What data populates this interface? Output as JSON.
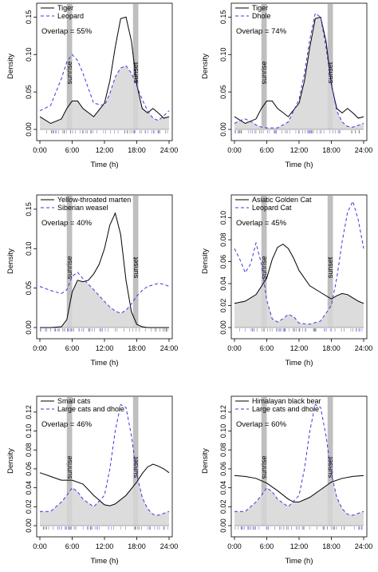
{
  "figure": {
    "xlabel": "Time (h)",
    "ylabel": "Density",
    "sunrise_label": "sunrise",
    "sunset_label": "sunset",
    "colors": {
      "solid": "#000000",
      "dashed": "#3a3ae0",
      "fill": "#d6d6d6",
      "band": "#bfbfbf",
      "rug_solid": "#777777",
      "rug_dashed": "#7a7af0"
    }
  },
  "chart_data": [
    {
      "type": "line",
      "xlabel": "Time (h)",
      "ylabel": "Density",
      "xlim": [
        0,
        24
      ],
      "ylim": [
        0,
        0.16
      ],
      "xticks": [
        "0:00",
        "6:00",
        "12:00",
        "18:00",
        "24:00"
      ],
      "yticks": [
        "0.00",
        "0.05",
        "0.10",
        "0.15"
      ],
      "overlap": "Overlap = 55%",
      "series": [
        {
          "name": "Tiger",
          "style": "solid",
          "x": [
            0,
            2,
            4,
            5,
            6,
            7,
            8,
            10,
            12,
            13,
            14,
            15,
            16,
            17,
            18,
            19,
            20,
            21,
            22,
            23,
            24
          ],
          "y": [
            0.017,
            0.008,
            0.014,
            0.028,
            0.038,
            0.038,
            0.028,
            0.017,
            0.035,
            0.065,
            0.11,
            0.148,
            0.15,
            0.118,
            0.06,
            0.028,
            0.022,
            0.028,
            0.022,
            0.015,
            0.017
          ]
        },
        {
          "name": "Leopard",
          "style": "dashed",
          "x": [
            0,
            2,
            4,
            5,
            6,
            7,
            8,
            10,
            12,
            13,
            14,
            15,
            16,
            17,
            18,
            19,
            20,
            21,
            22,
            23,
            24
          ],
          "y": [
            0.025,
            0.032,
            0.068,
            0.09,
            0.1,
            0.092,
            0.075,
            0.035,
            0.032,
            0.048,
            0.07,
            0.082,
            0.085,
            0.075,
            0.058,
            0.04,
            0.025,
            0.015,
            0.012,
            0.018,
            0.025
          ]
        }
      ]
    },
    {
      "type": "line",
      "xlabel": "Time (h)",
      "ylabel": "Density",
      "xlim": [
        0,
        24
      ],
      "ylim": [
        0,
        0.16
      ],
      "xticks": [
        "0:00",
        "6:00",
        "12:00",
        "18:00",
        "24:00"
      ],
      "yticks": [
        "0.00",
        "0.05",
        "0.10",
        "0.15"
      ],
      "overlap": "Overlap = 74%",
      "series": [
        {
          "name": "Tiger",
          "style": "solid",
          "x": [
            0,
            2,
            4,
            5,
            6,
            7,
            8,
            10,
            12,
            13,
            14,
            15,
            16,
            17,
            18,
            19,
            20,
            21,
            22,
            23,
            24
          ],
          "y": [
            0.017,
            0.008,
            0.014,
            0.028,
            0.038,
            0.038,
            0.028,
            0.017,
            0.035,
            0.065,
            0.11,
            0.148,
            0.15,
            0.118,
            0.06,
            0.028,
            0.022,
            0.028,
            0.022,
            0.015,
            0.017
          ]
        },
        {
          "name": "Dhole",
          "style": "dashed",
          "x": [
            0,
            1,
            2,
            3,
            4,
            5,
            6,
            8,
            10,
            12,
            13,
            14,
            15,
            16,
            17,
            18,
            19,
            20,
            21,
            22,
            24
          ],
          "y": [
            0.008,
            0.012,
            0.014,
            0.011,
            0.006,
            0.003,
            0.002,
            0.002,
            0.01,
            0.04,
            0.075,
            0.12,
            0.155,
            0.15,
            0.11,
            0.06,
            0.025,
            0.01,
            0.004,
            0.003,
            0.008
          ]
        }
      ]
    },
    {
      "type": "line",
      "xlabel": "Time (h)",
      "ylabel": "Density",
      "xlim": [
        0,
        24
      ],
      "ylim": [
        0,
        0.16
      ],
      "xticks": [
        "0:00",
        "6:00",
        "12:00",
        "18:00",
        "24:00"
      ],
      "yticks": [
        "0.00",
        "0.05",
        "0.10",
        "0.15"
      ],
      "overlap": "Overlap = 40%",
      "series": [
        {
          "name": "Yellow-throated marten",
          "style": "solid",
          "x": [
            0,
            2,
            4,
            5,
            6,
            7,
            8,
            9,
            10,
            11,
            12,
            13,
            14,
            15,
            16,
            17,
            18,
            19,
            20,
            22,
            24
          ],
          "y": [
            0.0,
            0.0,
            0.001,
            0.01,
            0.045,
            0.06,
            0.058,
            0.06,
            0.068,
            0.08,
            0.1,
            0.13,
            0.145,
            0.118,
            0.06,
            0.02,
            0.004,
            0.001,
            0.0,
            0.0,
            0.0
          ]
        },
        {
          "name": "Siberian weasel",
          "style": "dashed",
          "x": [
            0,
            2,
            4,
            5,
            6,
            7,
            8,
            10,
            12,
            13,
            14,
            15,
            16,
            17,
            18,
            19,
            20,
            21,
            22,
            23,
            24
          ],
          "y": [
            0.052,
            0.047,
            0.043,
            0.048,
            0.065,
            0.07,
            0.062,
            0.048,
            0.033,
            0.026,
            0.021,
            0.018,
            0.022,
            0.03,
            0.04,
            0.047,
            0.052,
            0.054,
            0.056,
            0.055,
            0.052
          ]
        }
      ]
    },
    {
      "type": "line",
      "xlabel": "Time (h)",
      "ylabel": "Density",
      "xlim": [
        0,
        24
      ],
      "ylim": [
        0,
        0.115
      ],
      "xticks": [
        "0:00",
        "6:00",
        "12:00",
        "18:00",
        "24:00"
      ],
      "yticks": [
        "0.00",
        "0.02",
        "0.04",
        "0.06",
        "0.08",
        "0.10"
      ],
      "overlap": "Overlap = 45%",
      "series": [
        {
          "name": "Asiatic Golden Cat",
          "style": "solid",
          "x": [
            0,
            2,
            4,
            6,
            7,
            8,
            9,
            10,
            11,
            12,
            14,
            16,
            18,
            19,
            20,
            21,
            22,
            23,
            24
          ],
          "y": [
            0.022,
            0.024,
            0.03,
            0.045,
            0.062,
            0.073,
            0.076,
            0.072,
            0.063,
            0.052,
            0.038,
            0.032,
            0.026,
            0.029,
            0.031,
            0.03,
            0.027,
            0.024,
            0.022
          ]
        },
        {
          "name": "Leopard Cat",
          "style": "dashed",
          "x": [
            0,
            1,
            2,
            3,
            4,
            5,
            6,
            7,
            8,
            9,
            10,
            11,
            12,
            14,
            16,
            18,
            19,
            20,
            21,
            22,
            23,
            24
          ],
          "y": [
            0.072,
            0.062,
            0.05,
            0.058,
            0.077,
            0.058,
            0.025,
            0.008,
            0.005,
            0.008,
            0.012,
            0.01,
            0.004,
            0.003,
            0.006,
            0.02,
            0.045,
            0.078,
            0.105,
            0.115,
            0.098,
            0.072
          ]
        }
      ]
    },
    {
      "type": "line",
      "xlabel": "Time (h)",
      "ylabel": "Density",
      "xlim": [
        0,
        24
      ],
      "ylim": [
        0,
        0.13
      ],
      "xticks": [
        "0:00",
        "6:00",
        "12:00",
        "18:00",
        "24:00"
      ],
      "yticks": [
        "0.00",
        "0.02",
        "0.04",
        "0.06",
        "0.08",
        "0.10",
        "0.12"
      ],
      "overlap": "Overlap = 46%",
      "series": [
        {
          "name": "Small cats",
          "style": "solid",
          "x": [
            0,
            2,
            4,
            6,
            8,
            10,
            12,
            13,
            14,
            16,
            18,
            19,
            20,
            21,
            22,
            23,
            24
          ],
          "y": [
            0.056,
            0.052,
            0.048,
            0.048,
            0.044,
            0.032,
            0.022,
            0.021,
            0.023,
            0.032,
            0.046,
            0.055,
            0.062,
            0.065,
            0.063,
            0.06,
            0.056
          ]
        },
        {
          "name": "Large cats and dhole",
          "style": "dashed",
          "x": [
            0,
            2,
            4,
            5,
            6,
            7,
            8,
            10,
            12,
            13,
            14,
            15,
            16,
            17,
            18,
            19,
            20,
            21,
            22,
            23,
            24
          ],
          "y": [
            0.015,
            0.015,
            0.025,
            0.032,
            0.04,
            0.036,
            0.028,
            0.02,
            0.032,
            0.06,
            0.1,
            0.128,
            0.125,
            0.095,
            0.055,
            0.03,
            0.018,
            0.012,
            0.011,
            0.013,
            0.015
          ]
        }
      ]
    },
    {
      "type": "line",
      "xlabel": "Time (h)",
      "ylabel": "Density",
      "xlim": [
        0,
        24
      ],
      "ylim": [
        0,
        0.13
      ],
      "xticks": [
        "0:00",
        "6:00",
        "12:00",
        "18:00",
        "24:00"
      ],
      "yticks": [
        "0.00",
        "0.02",
        "0.04",
        "0.06",
        "0.08",
        "0.10",
        "0.12"
      ],
      "overlap": "Overlap = 60%",
      "series": [
        {
          "name": "Himalayan black bear",
          "style": "solid",
          "x": [
            0,
            2,
            4,
            6,
            8,
            10,
            11,
            12,
            14,
            16,
            18,
            20,
            22,
            24
          ],
          "y": [
            0.053,
            0.052,
            0.05,
            0.045,
            0.037,
            0.028,
            0.025,
            0.025,
            0.03,
            0.038,
            0.046,
            0.05,
            0.052,
            0.053
          ]
        },
        {
          "name": "Large cats and dhole",
          "style": "dashed",
          "x": [
            0,
            2,
            4,
            5,
            6,
            7,
            8,
            10,
            12,
            13,
            14,
            15,
            16,
            17,
            18,
            19,
            20,
            21,
            22,
            23,
            24
          ],
          "y": [
            0.015,
            0.015,
            0.025,
            0.032,
            0.04,
            0.036,
            0.028,
            0.02,
            0.032,
            0.06,
            0.1,
            0.128,
            0.125,
            0.095,
            0.055,
            0.03,
            0.018,
            0.012,
            0.011,
            0.013,
            0.015
          ]
        }
      ]
    }
  ]
}
